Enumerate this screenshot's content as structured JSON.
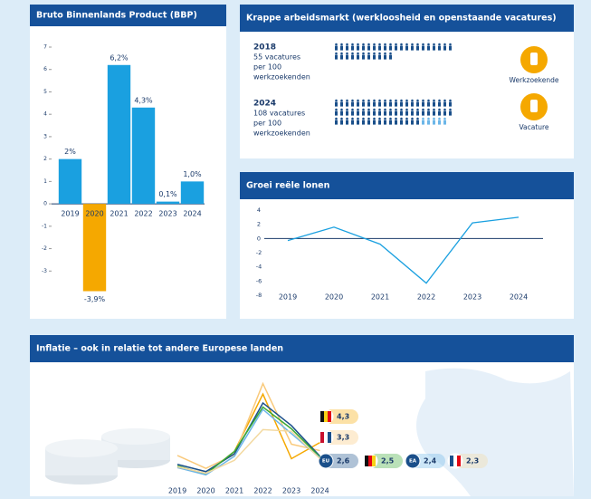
{
  "chart_data": [
    {
      "type": "bar",
      "title": "Bruto Binnenlands Product (BBP)",
      "categories": [
        "2019",
        "2020",
        "2021",
        "2022",
        "2023",
        "2024"
      ],
      "values": [
        2,
        -3.9,
        6.2,
        4.3,
        0.1,
        1.0
      ],
      "value_labels": [
        "2%",
        "-3,9%",
        "6,2%",
        "4,3%",
        "0,1%",
        "1,0%"
      ],
      "colors": [
        "#1aa0e0",
        "#f5a800",
        "#1aa0e0",
        "#1aa0e0",
        "#1aa0e0",
        "#1aa0e0"
      ],
      "ylim": [
        -4,
        7
      ],
      "yticks": [
        -3,
        -2,
        -1,
        0,
        1,
        2,
        3,
        4,
        5,
        6,
        7
      ]
    },
    {
      "type": "pictogram",
      "title": "Krappe arbeidsmarkt (werkloosheid en openstaande vacatures)",
      "rows": [
        {
          "year": "2018",
          "lines": [
            "55 vacatures",
            "per 100",
            "werkzoekenden"
          ],
          "value": 55
        },
        {
          "year": "2024",
          "lines": [
            "108 vacatures",
            "per 100",
            "werkzoekenden"
          ],
          "value": 108
        }
      ],
      "legend": [
        "Werkzoekende",
        "Vacature"
      ],
      "colors": [
        "#1a4f8a",
        "#6cb6e8"
      ]
    },
    {
      "type": "line",
      "title": "Groei reële lonen",
      "categories": [
        "2019",
        "2020",
        "2021",
        "2022",
        "2023",
        "2024"
      ],
      "values": [
        -0.3,
        1.6,
        -0.8,
        -6.3,
        2.2,
        3.0
      ],
      "color": "#1aa0e0",
      "ylim": [
        -8,
        4
      ],
      "yticks": [
        -8,
        -6,
        -4,
        -2,
        0,
        2,
        4
      ]
    },
    {
      "type": "multiline",
      "title": "Inflatie – ook in relatie tot andere Europese landen",
      "categories": [
        "2019",
        "2020",
        "2021",
        "2022",
        "2023",
        "2024"
      ],
      "ylim": [
        0,
        12
      ],
      "series": [
        {
          "color": "#f5a800",
          "flag": [
            "#111111",
            "#f7d117",
            "#e30613"
          ],
          "values": [
            1.2,
            0.4,
            3.2,
            10.3,
            2.3,
            4.3
          ],
          "value_labels": [
            null,
            null,
            null,
            null,
            null,
            "4,3"
          ]
        },
        {
          "color": "#f9c97a",
          "flag": [
            "#c8102e",
            "#ffffff",
            "#1a4f8a"
          ],
          "values": [
            2.7,
            1.1,
            2.8,
            11.6,
            4.1,
            3.3
          ],
          "value_labels": [
            null,
            null,
            null,
            null,
            null,
            "3,3"
          ]
        },
        {
          "name": "EU",
          "color": "#1a4f8a",
          "values": [
            1.6,
            0.7,
            2.9,
            9.2,
            6.4,
            2.6
          ],
          "value_labels": [
            null,
            null,
            null,
            null,
            null,
            "2,6"
          ]
        },
        {
          "color": "#3aa935",
          "flag": [
            "#111111",
            "#e30613",
            "#f7d117"
          ],
          "values": [
            1.4,
            0.4,
            3.2,
            8.7,
            6.0,
            2.5
          ],
          "value_labels": [
            null,
            null,
            null,
            null,
            null,
            "2,5"
          ]
        },
        {
          "name": "EA",
          "color": "#6cb6e8",
          "values": [
            1.2,
            0.3,
            2.6,
            8.4,
            5.4,
            2.4
          ],
          "value_labels": [
            null,
            null,
            null,
            null,
            null,
            "2,4"
          ]
        },
        {
          "color": "#f3d9a0",
          "flag": [
            "#1a4f8a",
            "#ffffff",
            "#e30613"
          ],
          "values": [
            1.3,
            0.5,
            2.1,
            5.9,
            5.7,
            2.3
          ],
          "value_labels": [
            null,
            null,
            null,
            null,
            null,
            "2,3"
          ]
        }
      ]
    }
  ]
}
